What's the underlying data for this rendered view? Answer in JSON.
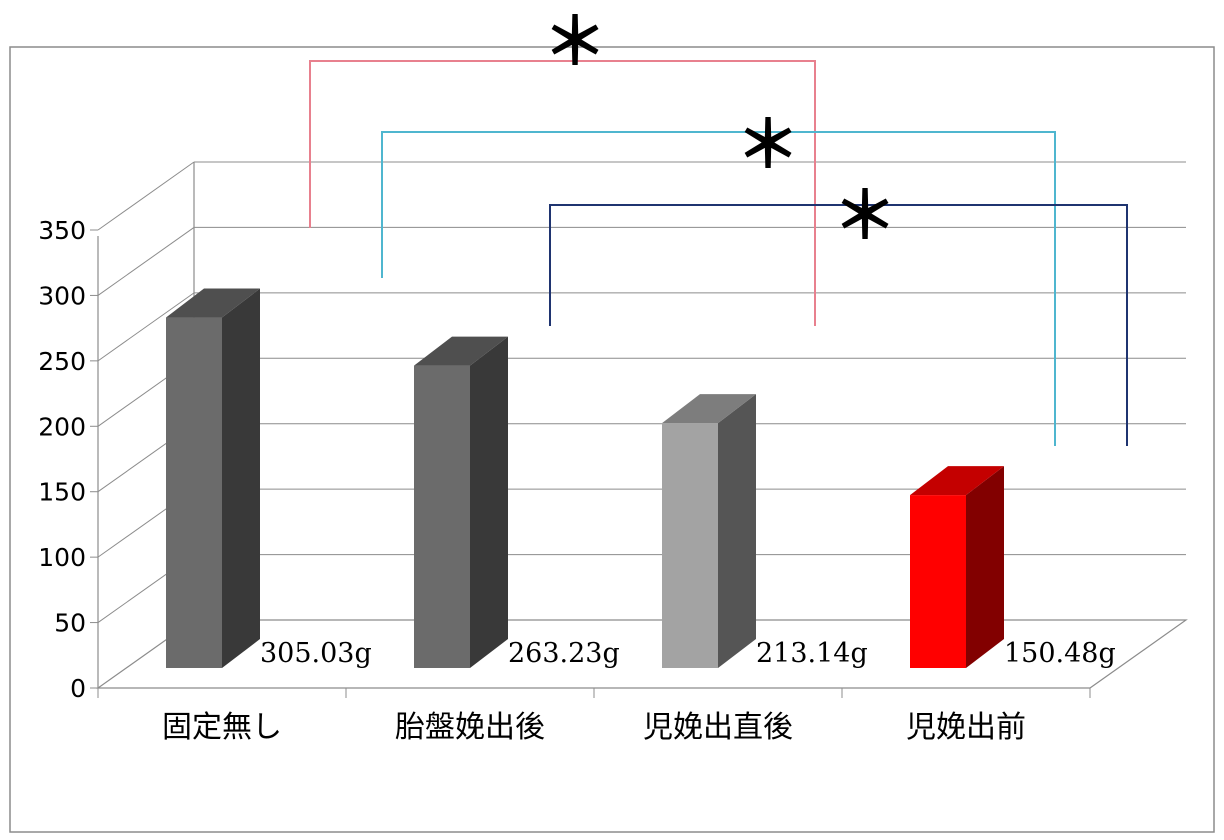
{
  "chart_data": {
    "type": "bar",
    "title": "",
    "xlabel": "",
    "ylabel": "",
    "categories": [
      "固定無し",
      "胎盤娩出後",
      "児娩出直後",
      "児娩出前"
    ],
    "values": [
      305.03,
      263.23,
      213.14,
      150.48
    ],
    "data_labels": [
      "305.03g",
      "263.23g",
      "213.14g",
      "150.48g"
    ],
    "y_ticks": [
      "0",
      "50",
      "100",
      "150",
      "200",
      "250",
      "300",
      "350"
    ],
    "ylim": [
      0,
      350
    ],
    "grid": true,
    "three_d": true,
    "legend": "none",
    "bar_colors": [
      {
        "front": "#6b6b6b",
        "top": "#4f4f4f",
        "side": "#393939"
      },
      {
        "front": "#6b6b6b",
        "top": "#4f4f4f",
        "side": "#393939"
      },
      {
        "front": "#a3a3a3",
        "top": "#7d7d7d",
        "side": "#555555"
      },
      {
        "front": "#ff0000",
        "top": "#c40000",
        "side": "#820000"
      }
    ],
    "significance": [
      {
        "from": 0,
        "to": 2,
        "label": "＊",
        "color": "#e8808e"
      },
      {
        "from": 1,
        "to": 3,
        "label": "＊",
        "color": "#4fb6cf"
      },
      {
        "from": 2,
        "to": 3,
        "label": "＊",
        "color": "#1f3470"
      }
    ]
  }
}
